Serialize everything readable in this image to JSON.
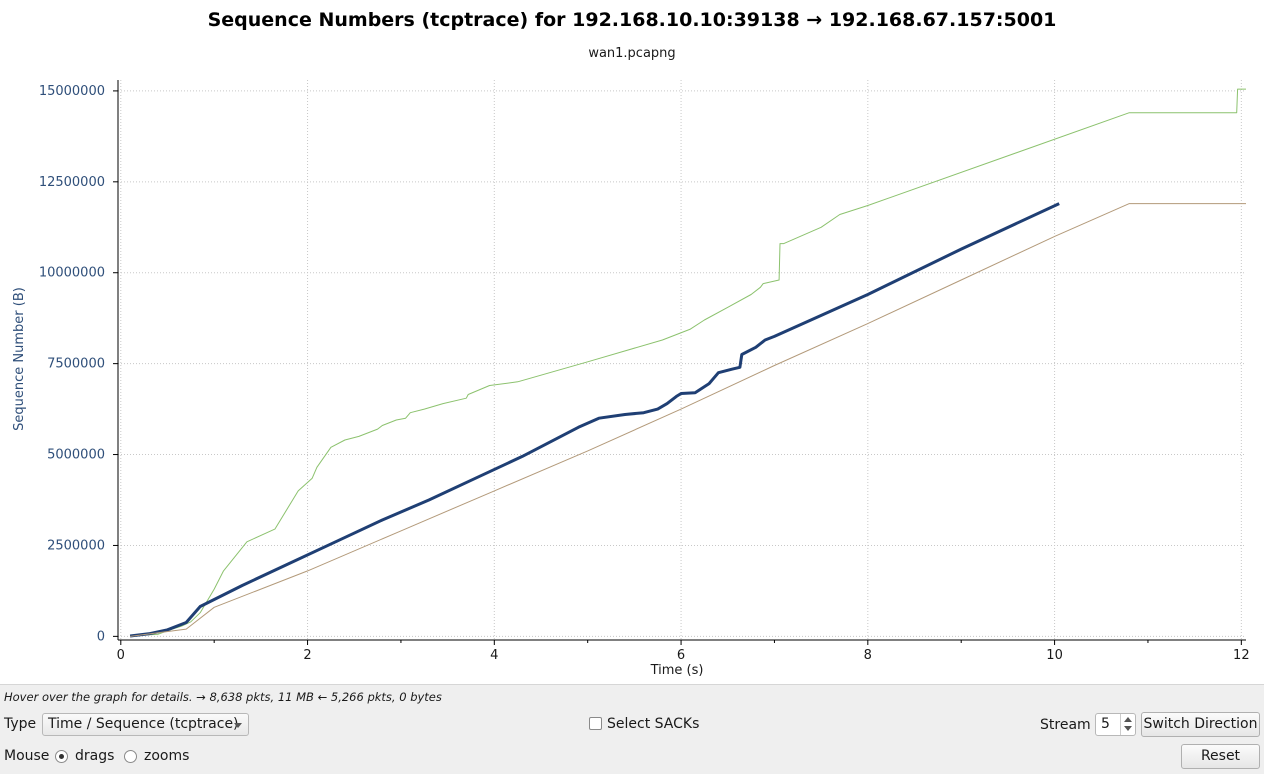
{
  "chart_data": {
    "type": "line",
    "title": "Sequence Numbers (tcptrace) for 192.168.10.10:39138 → 192.168.67.157:5001",
    "subtitle": "wan1.pcapng",
    "xlabel": "Time (s)",
    "ylabel": "Sequence Number (B)",
    "xlim": [
      -0.03,
      12.05
    ],
    "ylim": [
      -100000,
      15300000
    ],
    "x_ticks": [
      0,
      2,
      4,
      6,
      8,
      10,
      12
    ],
    "y_ticks": [
      0,
      2500000,
      5000000,
      7500000,
      10000000,
      12500000,
      15000000
    ],
    "y_tick_labels": [
      "0",
      "2500000",
      "5000000",
      "7500000",
      "10000000",
      "12500000",
      "15000000"
    ],
    "grid": true,
    "series": [
      {
        "role": "receive window",
        "color": "#8cc26e",
        "x": [
          0.1,
          0.4,
          0.55,
          0.65,
          0.75,
          0.85,
          1.0,
          1.1,
          1.35,
          1.65,
          1.9,
          2.05,
          2.1,
          2.25,
          2.4,
          2.55,
          2.75,
          2.8,
          2.95,
          3.05,
          3.1,
          3.25,
          3.45,
          3.7,
          3.72,
          3.95,
          4.25,
          5.0,
          5.8,
          6.1,
          6.25,
          6.5,
          6.75,
          6.85,
          6.88,
          7.05,
          7.06,
          7.1,
          7.5,
          7.7,
          8.0,
          10.8,
          11.95,
          11.96,
          12.05
        ],
        "values": [
          10000,
          60000,
          200000,
          280000,
          400000,
          650000,
          1300000,
          1800000,
          2600000,
          2950000,
          4000000,
          4350000,
          4650000,
          5200000,
          5400000,
          5500000,
          5700000,
          5800000,
          5950000,
          6000000,
          6150000,
          6250000,
          6400000,
          6550000,
          6650000,
          6900000,
          7000000,
          7550000,
          8150000,
          8450000,
          8700000,
          9050000,
          9400000,
          9600000,
          9700000,
          9800000,
          10800000,
          10800000,
          11250000,
          11600000,
          11850000,
          14400000,
          14400000,
          15050000,
          15050000
        ]
      },
      {
        "role": "sequence segments",
        "color": "#1f3f74",
        "x": [
          0.1,
          0.3,
          0.5,
          0.7,
          0.85,
          1.3,
          1.8,
          2.3,
          2.8,
          3.3,
          3.8,
          4.3,
          4.9,
          5.12,
          5.4,
          5.6,
          5.75,
          5.85,
          5.95,
          6.0,
          6.15,
          6.3,
          6.4,
          6.55,
          6.63,
          6.65,
          6.8,
          6.9,
          7.0,
          8.0,
          9.0,
          10.05
        ],
        "values": [
          10000,
          70000,
          180000,
          380000,
          820000,
          1400000,
          2000000,
          2600000,
          3200000,
          3750000,
          4350000,
          4950000,
          5750000,
          6000000,
          6100000,
          6150000,
          6250000,
          6400000,
          6600000,
          6680000,
          6700000,
          6950000,
          7250000,
          7350000,
          7400000,
          7750000,
          7950000,
          8150000,
          8250000,
          9400000,
          10650000,
          11900000
        ]
      },
      {
        "role": "ack",
        "color": "#b39a7a",
        "x": [
          0.1,
          0.7,
          1.0,
          2.0,
          3.0,
          4.0,
          5.0,
          6.0,
          7.0,
          8.0,
          9.0,
          10.0,
          10.8,
          11.95,
          12.05
        ],
        "values": [
          0,
          200000,
          800000,
          1800000,
          2900000,
          4000000,
          5100000,
          6250000,
          7450000,
          8600000,
          9800000,
          11000000,
          11900000,
          11900000,
          11900000
        ]
      }
    ]
  },
  "status": {
    "hint": "Hover over the graph for details. → 8,638 pkts, 11 MB ← 5,266 pkts, 0 bytes"
  },
  "controls": {
    "type_label": "Type",
    "type_value": "Time / Sequence (tcptrace)",
    "select_sacks_label": "Select SACKs",
    "stream_label": "Stream",
    "stream_value": "5",
    "switch_direction_label": "Switch Direction",
    "mouse_label": "Mouse",
    "drags_label": "drags",
    "zooms_label": "zooms",
    "reset_label": "Reset",
    "mouse_mode": "drags"
  }
}
